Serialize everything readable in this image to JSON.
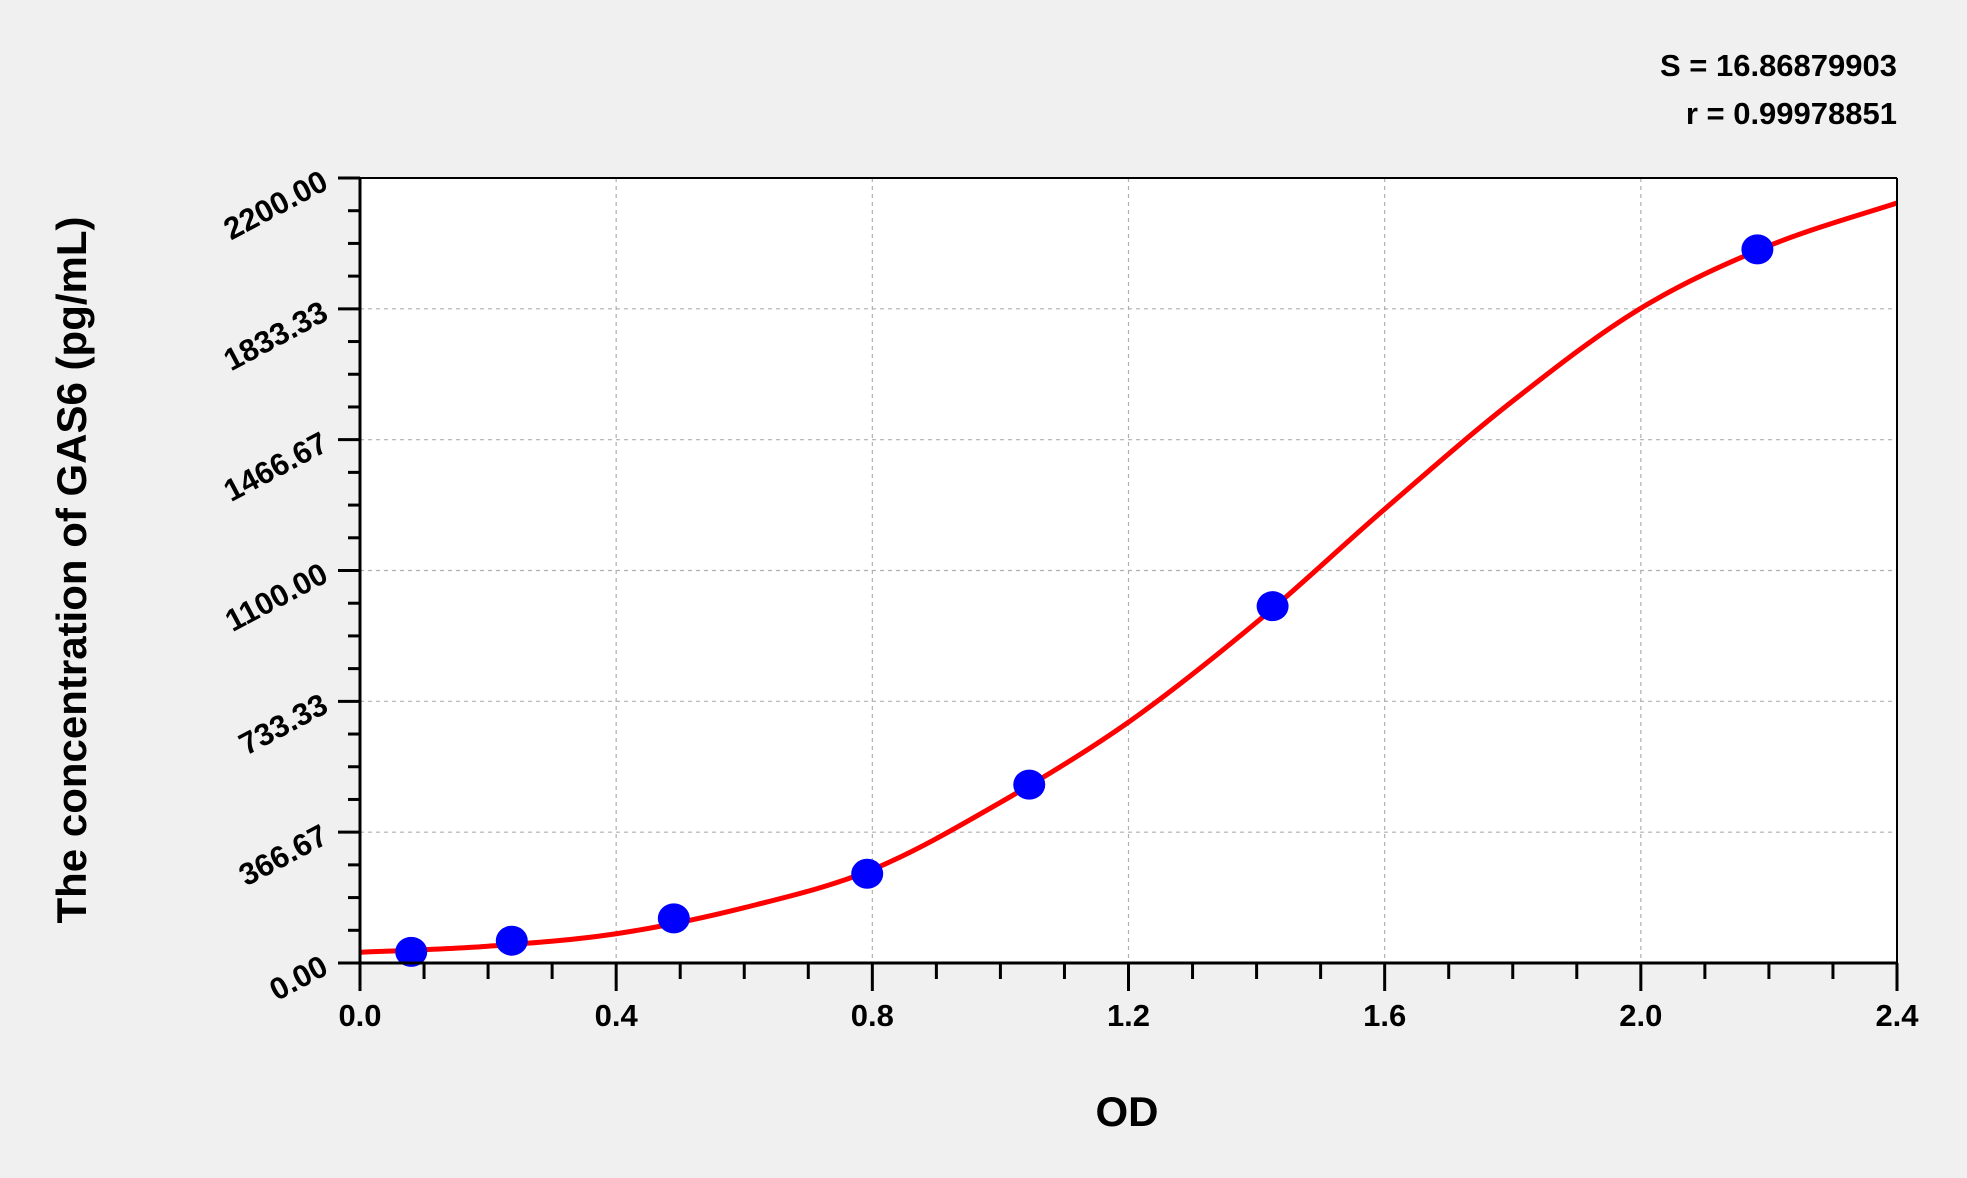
{
  "chart_data": {
    "type": "scatter",
    "title": "",
    "xlabel": "OD",
    "ylabel": "The concentration of GAS6 (pg/mL)",
    "xlim": [
      0,
      2.4
    ],
    "ylim": [
      0,
      2200
    ],
    "x_ticks": [
      "0.0",
      "0.4",
      "0.8",
      "1.2",
      "1.6",
      "2.0",
      "2.4"
    ],
    "y_ticks": [
      "0.00",
      "366.67",
      "733.33",
      "1100.00",
      "1466.67",
      "1833.33",
      "2200.00"
    ],
    "grid": true,
    "stats": [
      "S = 16.86879903",
      "r = 0.99978851"
    ],
    "colors": {
      "points": "#0000ff",
      "curve": "#ff0000",
      "background": "#f0f0f0",
      "plot_bg": "#ffffff"
    },
    "points": [
      {
        "x": 0.08,
        "y": 31.25
      },
      {
        "x": 0.237,
        "y": 62.5
      },
      {
        "x": 0.49,
        "y": 125
      },
      {
        "x": 0.792,
        "y": 250
      },
      {
        "x": 1.045,
        "y": 500
      },
      {
        "x": 1.425,
        "y": 1000
      },
      {
        "x": 2.182,
        "y": 2000
      }
    ],
    "fit_curve": [
      {
        "x": 0.0,
        "y": 30
      },
      {
        "x": 0.2,
        "y": 47
      },
      {
        "x": 0.4,
        "y": 82
      },
      {
        "x": 0.6,
        "y": 155
      },
      {
        "x": 0.8,
        "y": 262
      },
      {
        "x": 1.0,
        "y": 450
      },
      {
        "x": 1.2,
        "y": 675
      },
      {
        "x": 1.4,
        "y": 955
      },
      {
        "x": 1.6,
        "y": 1272
      },
      {
        "x": 1.8,
        "y": 1575
      },
      {
        "x": 2.0,
        "y": 1835
      },
      {
        "x": 2.2,
        "y": 2010
      },
      {
        "x": 2.4,
        "y": 2130
      }
    ]
  }
}
